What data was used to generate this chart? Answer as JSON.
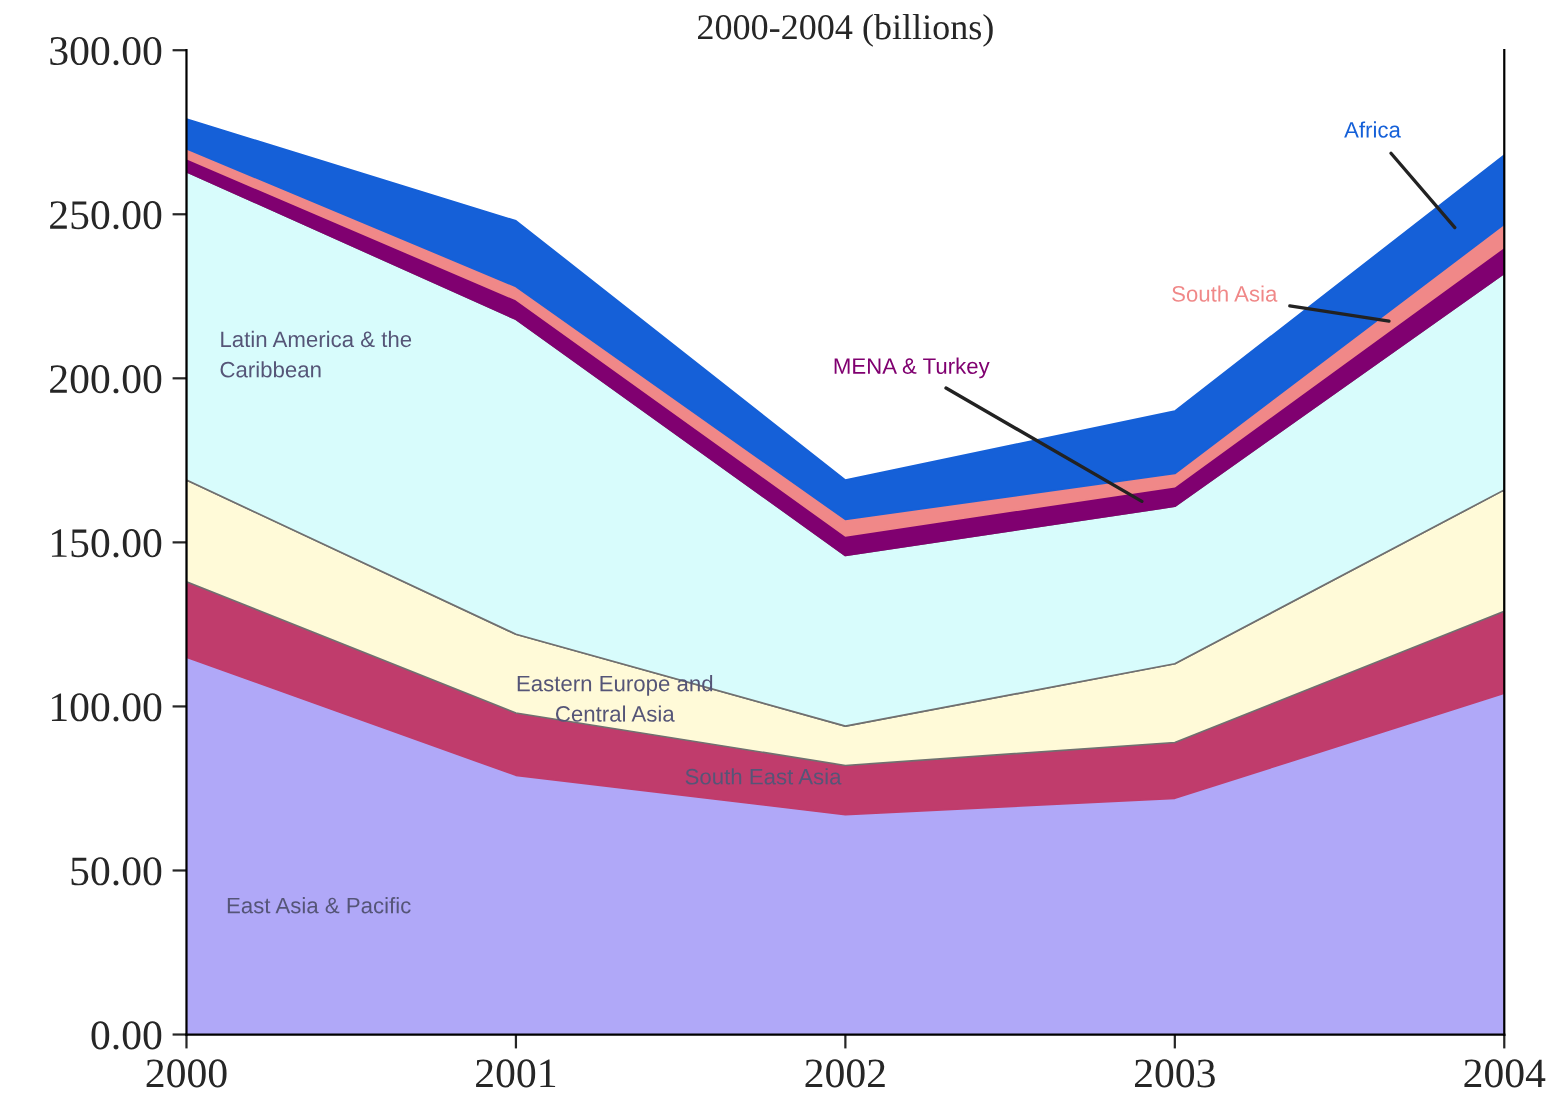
{
  "chart_data": {
    "type": "area",
    "stacked": true,
    "title": "2000-2004 (billions)",
    "x": [
      2000,
      2001,
      2002,
      2003,
      2004
    ],
    "xlim": [
      2000,
      2004
    ],
    "xticks": [
      2000,
      2001,
      2002,
      2003,
      2004
    ],
    "ylim": [
      0,
      300
    ],
    "yticks": [
      {
        "value": 0,
        "label": "0.00"
      },
      {
        "value": 50,
        "label": "50.00"
      },
      {
        "value": 100,
        "label": "100.00"
      },
      {
        "value": 150,
        "label": "150.00"
      },
      {
        "value": 200,
        "label": "200.00"
      },
      {
        "value": 250,
        "label": "250.00"
      },
      {
        "value": 300,
        "label": "300.00"
      }
    ],
    "grid": false,
    "legend": false,
    "series": [
      {
        "name": "East Asia & Pacific",
        "color": "#b0a8f8",
        "values": [
          115,
          79,
          67,
          72,
          104
        ]
      },
      {
        "name": "South East Asia",
        "color": "#c03c6c",
        "values": [
          23,
          19,
          15,
          17,
          25
        ]
      },
      {
        "name": "Eastern Europe and\nCentral Asia",
        "color": "#fffad8",
        "values": [
          31,
          24,
          12,
          24,
          37
        ]
      },
      {
        "name": "Latin America & the\nCaribbean",
        "color": "#d8fcfc",
        "values": [
          94,
          96,
          52,
          48,
          66
        ]
      },
      {
        "name": "MENA & Turkey",
        "color": "#800070",
        "values": [
          4,
          6,
          6,
          6,
          8
        ]
      },
      {
        "name": "South Asia",
        "color": "#f08888",
        "values": [
          3,
          4,
          5,
          4,
          7
        ]
      },
      {
        "name": "Africa",
        "color": "#1560d8",
        "values": [
          9,
          20,
          12,
          19,
          21
        ]
      }
    ]
  }
}
